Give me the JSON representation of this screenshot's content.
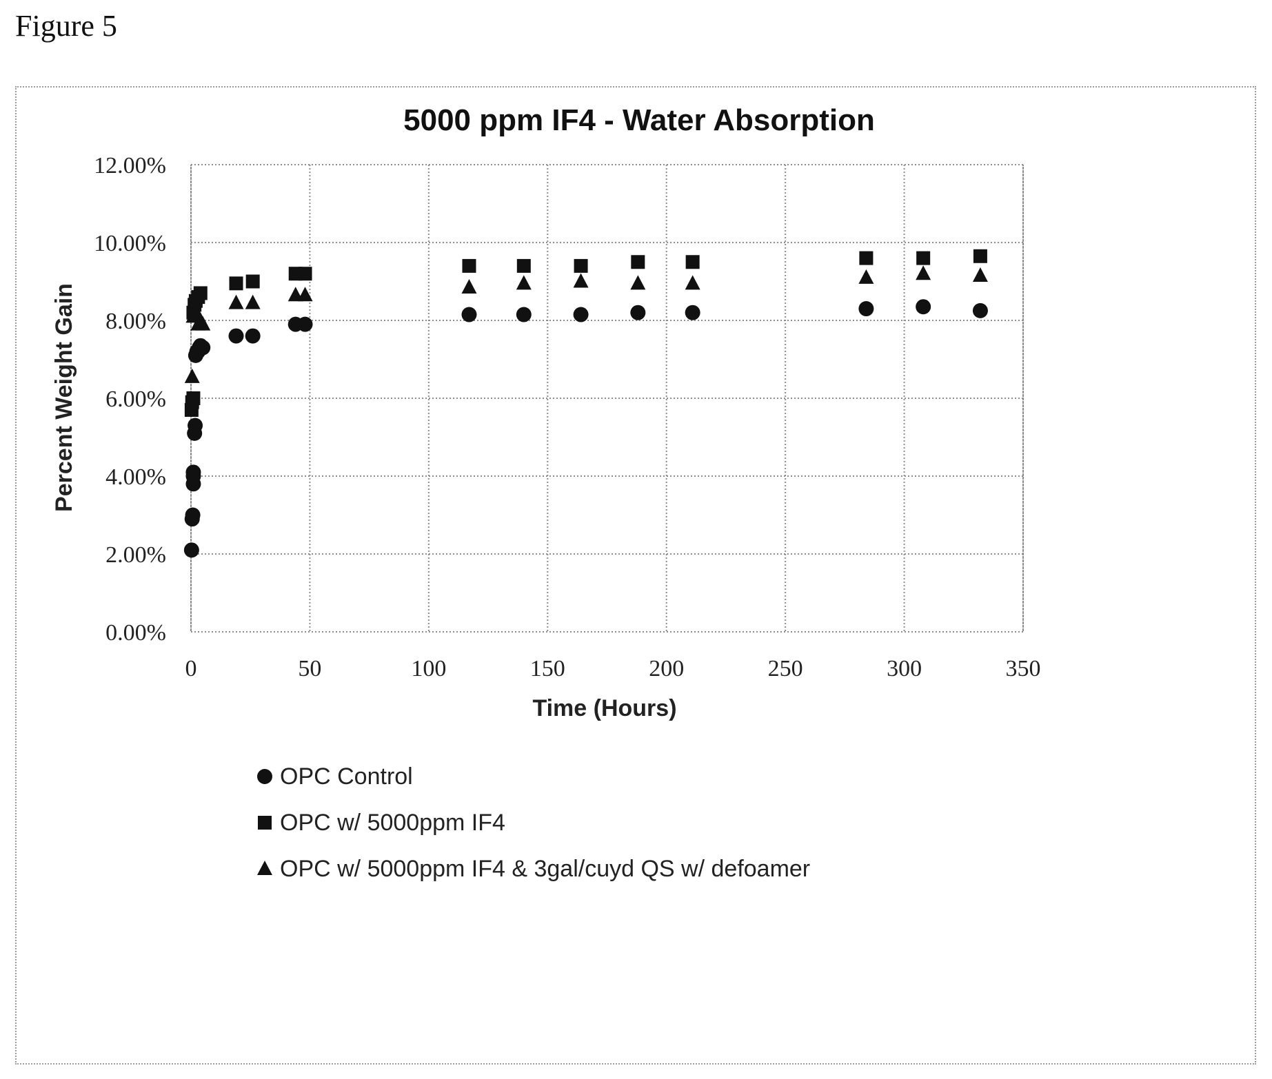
{
  "figure": {
    "label": "Figure 5"
  },
  "chart_data": {
    "type": "scatter",
    "title": "5000 ppm IF4 - Water Absorption",
    "xlabel": "Time (Hours)",
    "ylabel": "Percent Weight Gain",
    "xlim": [
      0,
      350
    ],
    "ylim": [
      0,
      12
    ],
    "x_ticks": [
      0,
      50,
      100,
      150,
      200,
      250,
      300,
      350
    ],
    "x_tick_labels": [
      "0",
      "50",
      "100",
      "150",
      "200",
      "250",
      "300",
      "350"
    ],
    "y_ticks": [
      0,
      2,
      4,
      6,
      8,
      10,
      12
    ],
    "y_tick_labels": [
      "0.00%",
      "2.00%",
      "4.00%",
      "6.00%",
      "8.00%",
      "10.00%",
      "12.00%"
    ],
    "grid": true,
    "legend_position": "bottom",
    "series": [
      {
        "name": "OPC Control",
        "marker": "circle",
        "color": "#111111",
        "points": [
          [
            0.25,
            2.1
          ],
          [
            0.5,
            2.9
          ],
          [
            0.75,
            3.0
          ],
          [
            1,
            3.8
          ],
          [
            1,
            4.0
          ],
          [
            1,
            4.1
          ],
          [
            1.5,
            5.1
          ],
          [
            1.75,
            5.3
          ],
          [
            2,
            7.1
          ],
          [
            2.5,
            7.2
          ],
          [
            3,
            7.2
          ],
          [
            3.5,
            7.3
          ],
          [
            4,
            7.35
          ],
          [
            5,
            7.3
          ],
          [
            19,
            7.6
          ],
          [
            26,
            7.6
          ],
          [
            44,
            7.9
          ],
          [
            48,
            7.9
          ],
          [
            117,
            8.15
          ],
          [
            140,
            8.15
          ],
          [
            164,
            8.15
          ],
          [
            188,
            8.2
          ],
          [
            211,
            8.2
          ],
          [
            284,
            8.3
          ],
          [
            308,
            8.35
          ],
          [
            332,
            8.25
          ]
        ]
      },
      {
        "name": "OPC w/ 5000ppm IF4",
        "marker": "square",
        "color": "#111111",
        "points": [
          [
            0.25,
            5.7
          ],
          [
            0.5,
            5.9
          ],
          [
            1,
            6.0
          ],
          [
            1,
            8.2
          ],
          [
            1.5,
            8.4
          ],
          [
            2,
            8.5
          ],
          [
            3,
            8.6
          ],
          [
            4,
            8.7
          ],
          [
            19,
            8.95
          ],
          [
            26,
            9.0
          ],
          [
            44,
            9.2
          ],
          [
            48,
            9.2
          ],
          [
            117,
            9.4
          ],
          [
            140,
            9.4
          ],
          [
            164,
            9.4
          ],
          [
            188,
            9.5
          ],
          [
            211,
            9.5
          ],
          [
            284,
            9.6
          ],
          [
            308,
            9.6
          ],
          [
            332,
            9.65
          ]
        ]
      },
      {
        "name": "OPC w/ 5000ppm IF4 & 3gal/cuyd QS w/ defoamer",
        "marker": "triangle",
        "color": "#111111",
        "points": [
          [
            0.5,
            6.55
          ],
          [
            1,
            8.1
          ],
          [
            2,
            8.15
          ],
          [
            3,
            7.9
          ],
          [
            4,
            8.0
          ],
          [
            5,
            7.9
          ],
          [
            19,
            8.45
          ],
          [
            26,
            8.45
          ],
          [
            44,
            8.65
          ],
          [
            48,
            8.65
          ],
          [
            117,
            8.85
          ],
          [
            140,
            8.95
          ],
          [
            164,
            9.0
          ],
          [
            188,
            8.95
          ],
          [
            211,
            8.95
          ],
          [
            284,
            9.1
          ],
          [
            308,
            9.2
          ],
          [
            332,
            9.15
          ]
        ]
      }
    ]
  }
}
